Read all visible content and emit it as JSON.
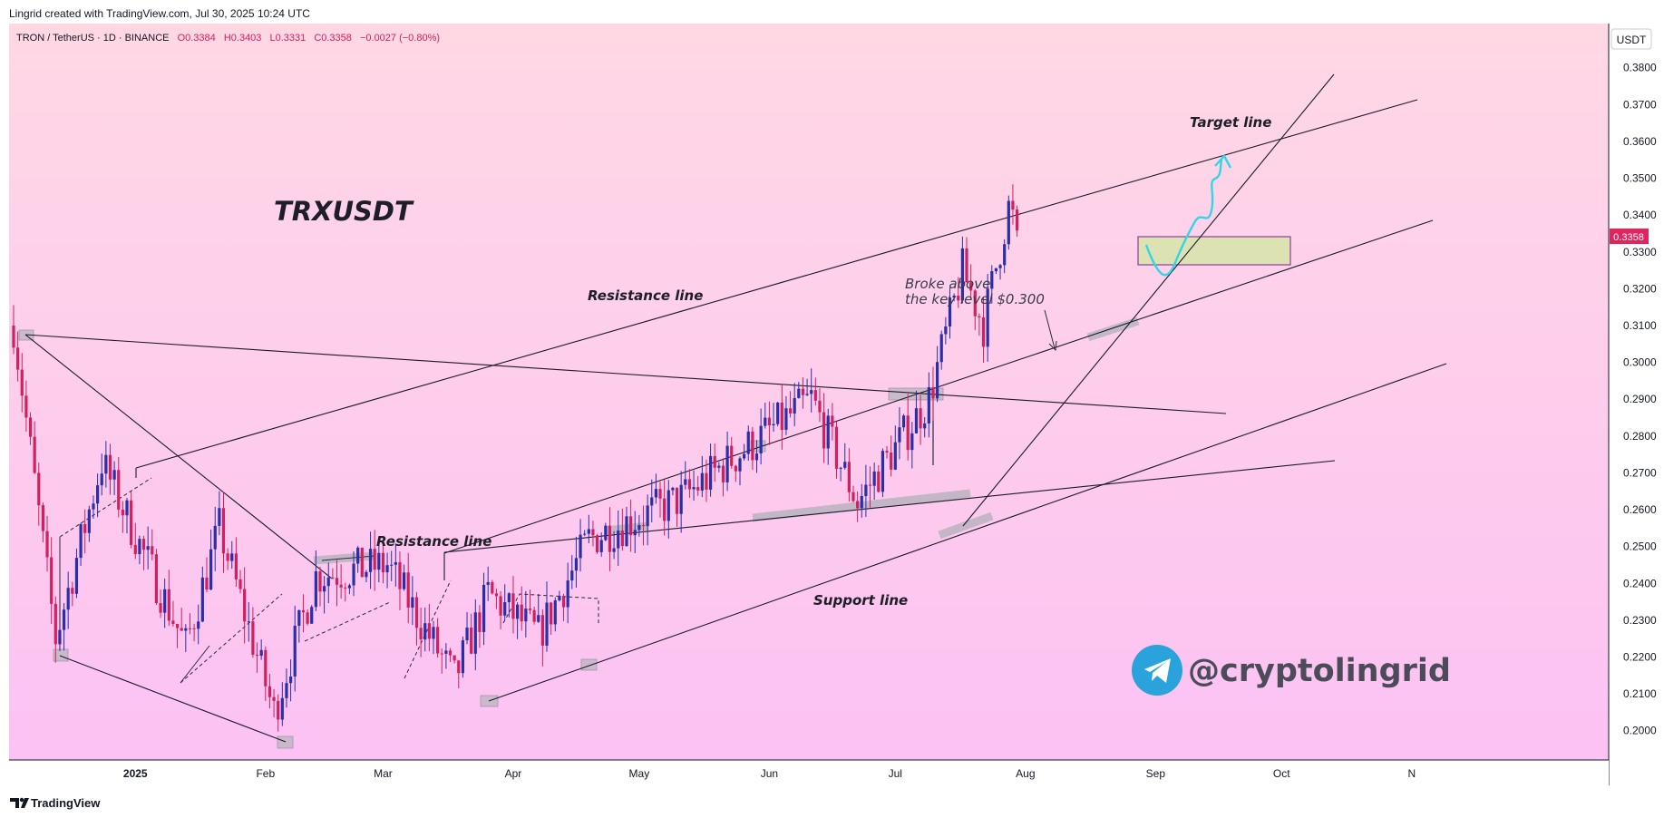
{
  "header": {
    "created_by": "Lingrid created with TradingView.com, Jul 30, 2025 10:24 UTC"
  },
  "legend": {
    "symbol": "TRON / TetherUS · 1D · BINANCE",
    "open": "O0.3384",
    "high": "H0.3403",
    "low": "L0.3331",
    "close": "C0.3358",
    "change": "−0.0027 (−0.80%)"
  },
  "price_axis": {
    "currency_button": "USDT",
    "current_price_label": "0.3358",
    "ticks": [
      "0.3800",
      "0.3700",
      "0.3600",
      "0.3500",
      "0.3400",
      "0.3300",
      "0.3200",
      "0.3100",
      "0.3000",
      "0.2900",
      "0.2800",
      "0.2700",
      "0.2600",
      "0.2500",
      "0.2400",
      "0.2300",
      "0.2200",
      "0.2100",
      "0.2000"
    ]
  },
  "time_axis": {
    "ticks": [
      "2025",
      "Feb",
      "Mar",
      "Apr",
      "May",
      "Jun",
      "Jul",
      "Aug",
      "Sep",
      "Oct",
      "N"
    ]
  },
  "annotations": {
    "title": "TRXUSDT",
    "resistance_upper": "Resistance line",
    "resistance_lower": "Resistance line",
    "support": "Support line",
    "target": "Target line",
    "broke_line1": "Broke above",
    "broke_line2": "the key level $0.300",
    "handle": "@cryptolingrid"
  },
  "footer": {
    "brand": "TradingView"
  },
  "colors": {
    "up_candle": "#2a2ea8",
    "down_candle": "#d0205f",
    "bg_top": "#ffd8e4",
    "bg_bottom": "#fcc2f3",
    "price_label_bg": "#e0245e",
    "projection": "#31d6e6",
    "zone_fill": "#d9e3ac",
    "zone_border": "#8a3fa0",
    "telegram": "#2aa3dc"
  },
  "chart_data": {
    "type": "candlestick",
    "symbol": "TRXUSDT",
    "timeframe": "1D",
    "ylim": [
      0.195,
      0.392
    ],
    "close_last": 0.3358,
    "anchors": [
      {
        "date": "2024-12-03",
        "price": 0.31
      },
      {
        "date": "2024-12-13",
        "price": 0.225
      },
      {
        "date": "2024-12-24",
        "price": 0.273
      },
      {
        "date": "2025-01-13",
        "price": 0.223
      },
      {
        "date": "2025-01-21",
        "price": 0.255
      },
      {
        "date": "2025-02-03",
        "price": 0.205
      },
      {
        "date": "2025-02-13",
        "price": 0.242
      },
      {
        "date": "2025-03-02",
        "price": 0.245
      },
      {
        "date": "2025-03-18",
        "price": 0.214
      },
      {
        "date": "2025-03-26",
        "price": 0.237
      },
      {
        "date": "2025-04-07",
        "price": 0.226
      },
      {
        "date": "2025-04-19",
        "price": 0.252
      },
      {
        "date": "2025-05-11",
        "price": 0.263
      },
      {
        "date": "2025-05-21",
        "price": 0.272
      },
      {
        "date": "2025-06-11",
        "price": 0.29
      },
      {
        "date": "2025-06-22",
        "price": 0.262
      },
      {
        "date": "2025-07-09",
        "price": 0.29
      },
      {
        "date": "2025-07-12",
        "price": 0.303
      },
      {
        "date": "2025-07-17",
        "price": 0.325
      },
      {
        "date": "2025-07-22",
        "price": 0.31
      },
      {
        "date": "2025-07-28",
        "price": 0.342
      },
      {
        "date": "2025-07-30",
        "price": 0.3358
      }
    ]
  }
}
